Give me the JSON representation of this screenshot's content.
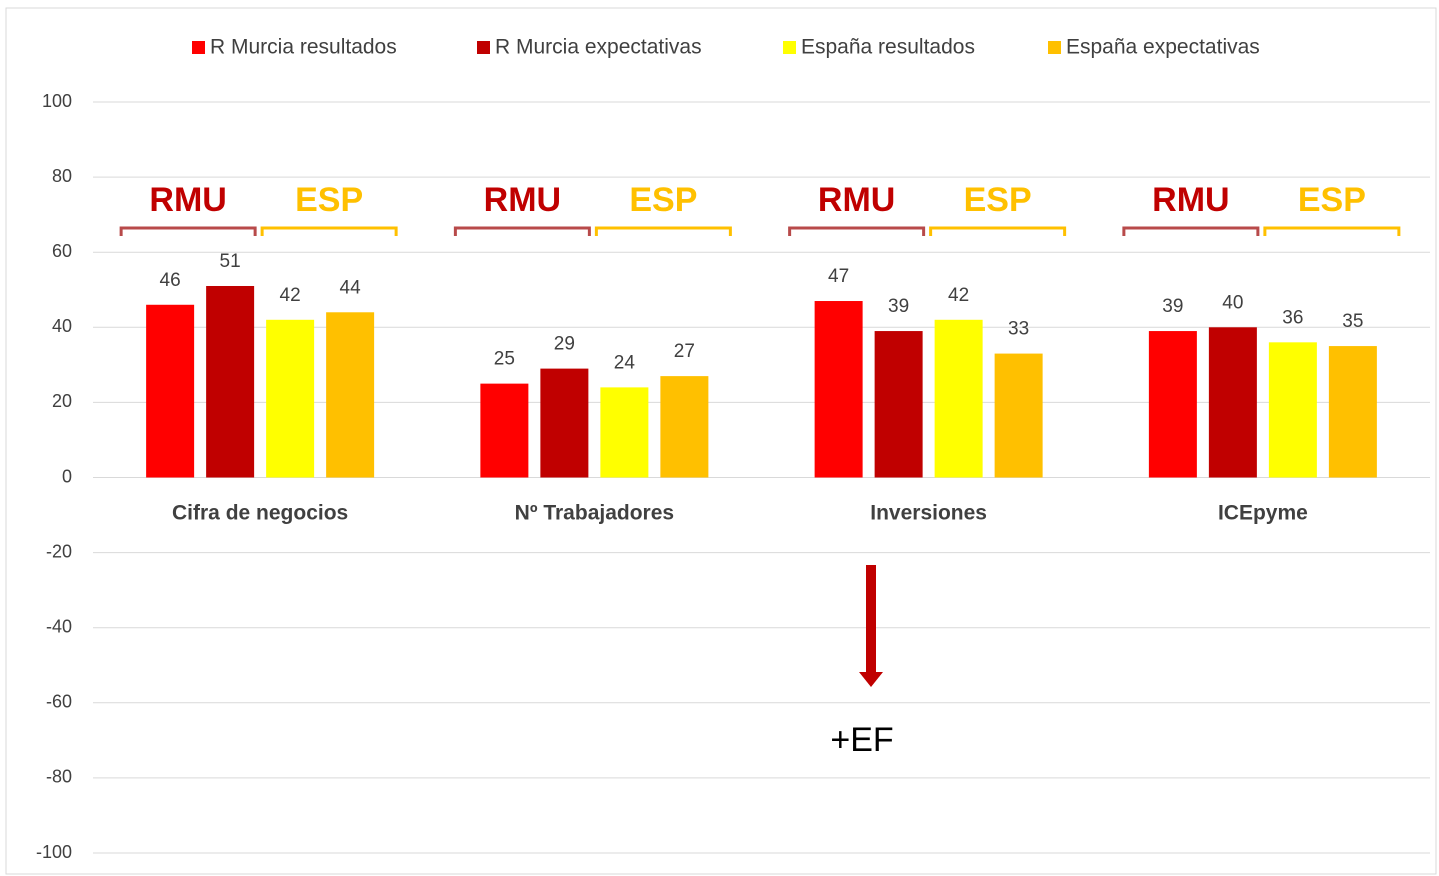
{
  "chart_data": {
    "type": "bar",
    "categories": [
      "Cifra de negocios",
      "Nº Trabajadores",
      "Inversiones",
      "ICEpyme"
    ],
    "series": [
      {
        "name": "R Murcia resultados",
        "color": "#ff0000",
        "values": [
          46,
          25,
          47,
          39
        ]
      },
      {
        "name": "R Murcia expectativas",
        "color": "#c00000",
        "values": [
          51,
          29,
          39,
          40
        ]
      },
      {
        "name": "España resultados",
        "color": "#ffff00",
        "values": [
          42,
          24,
          42,
          36
        ]
      },
      {
        "name": "España expectativas",
        "color": "#ffc000",
        "values": [
          44,
          27,
          33,
          35
        ]
      }
    ],
    "ylim": [
      -100,
      100
    ],
    "yticks": [
      -100,
      -80,
      -60,
      -40,
      -20,
      0,
      20,
      40,
      60,
      80,
      100
    ],
    "grid": true,
    "legend": "top",
    "annotations": {
      "groups": [
        {
          "label": "RMU",
          "color": "#c00000",
          "bracket_color": "#b84a4a"
        },
        {
          "label": "ESP",
          "color": "#ffc000",
          "bracket_color": "#ffc000"
        }
      ],
      "arrow_note": "+EF",
      "arrow_color": "#c00000"
    }
  }
}
